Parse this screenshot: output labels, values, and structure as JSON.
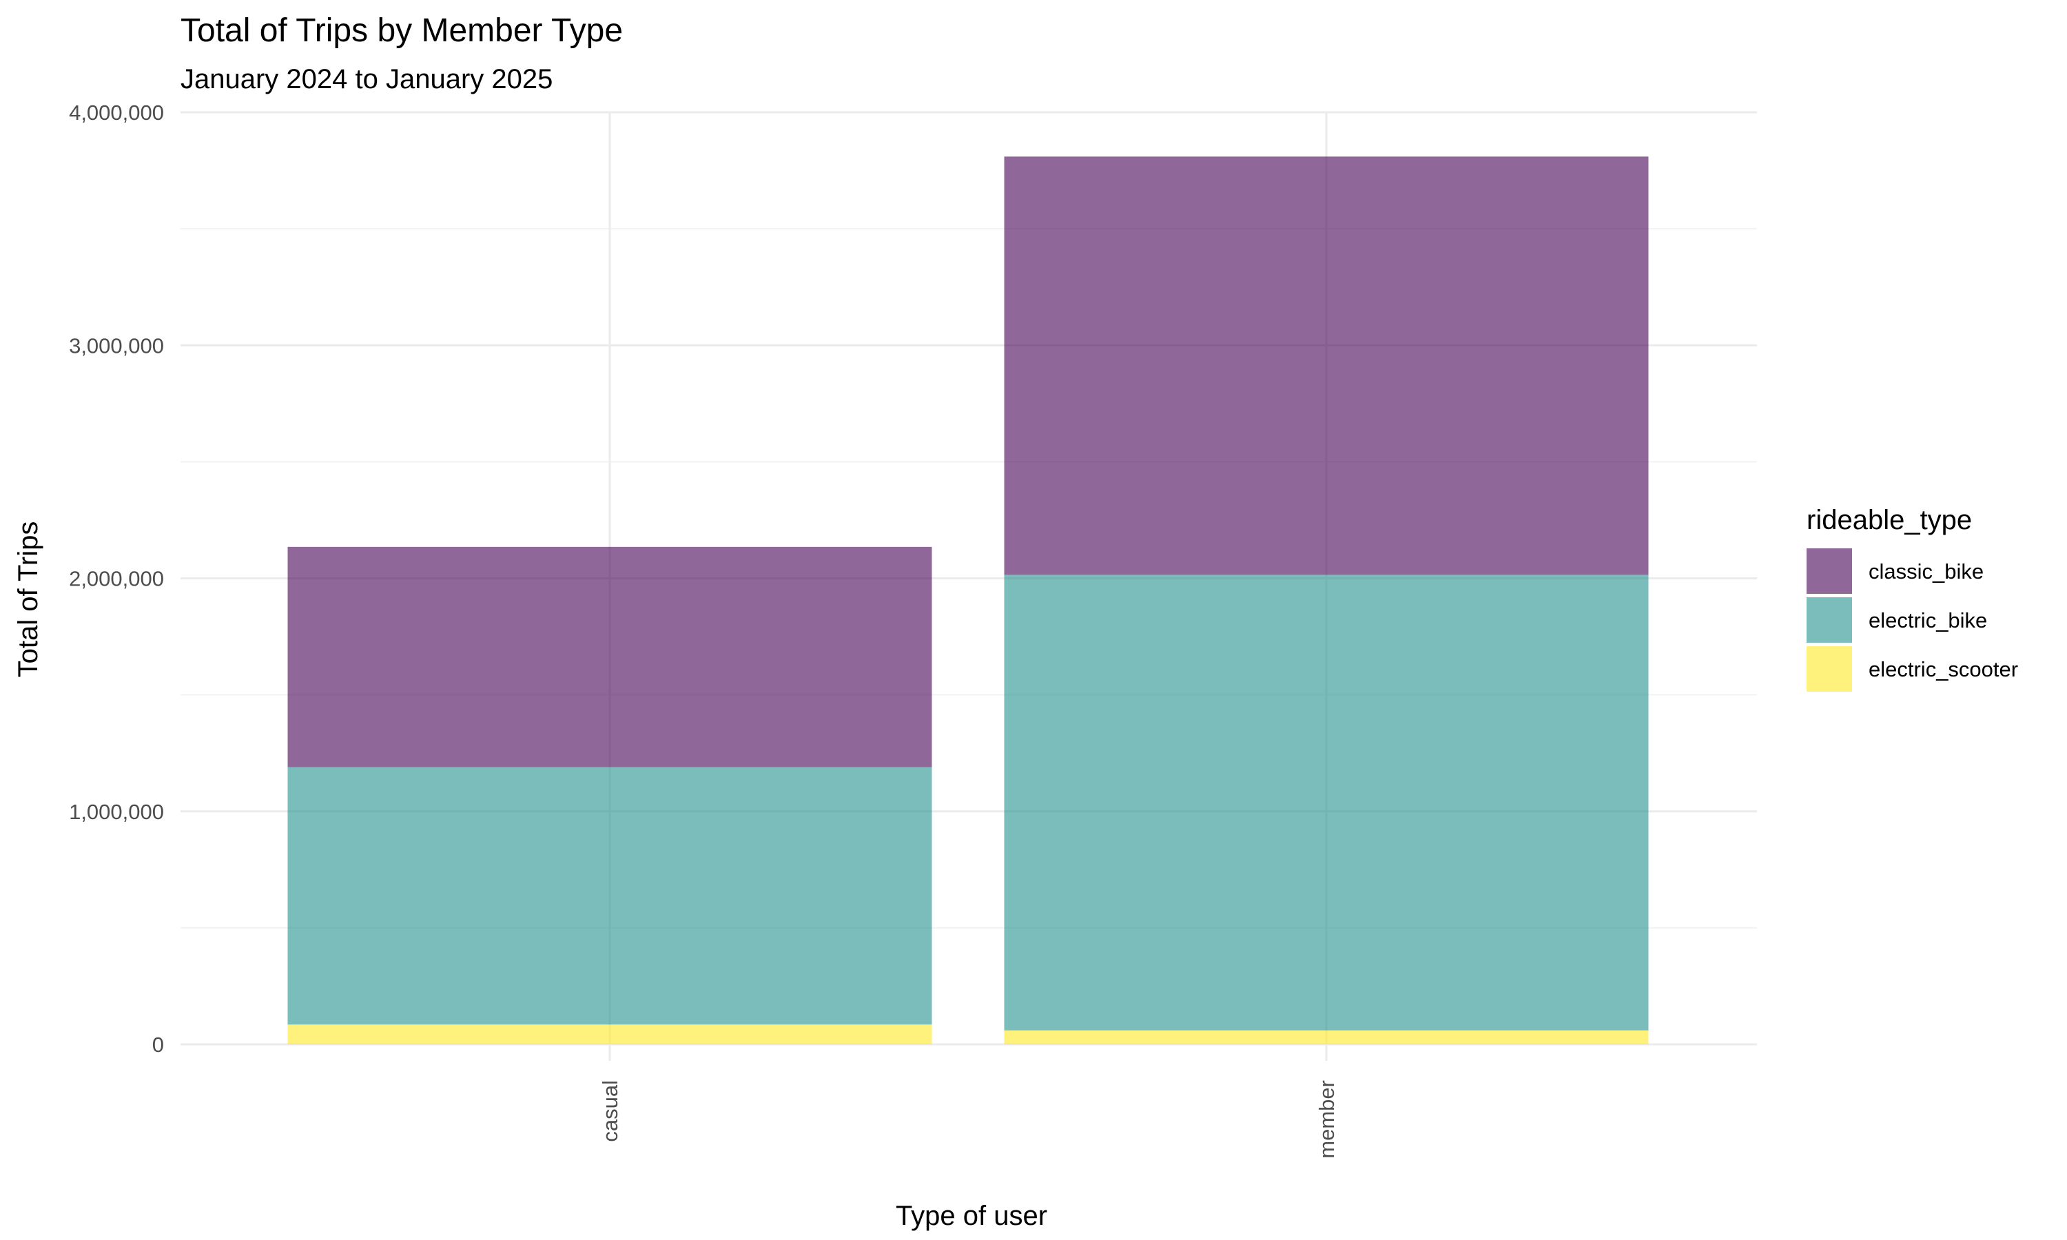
{
  "chart_data": {
    "type": "bar",
    "stacked": true,
    "title": "Total of Trips by Member Type",
    "subtitle": "January 2024 to January 2025",
    "xlabel": "Type of user",
    "ylabel": "Total of Trips",
    "categories": [
      "casual",
      "member"
    ],
    "ylim": [
      0,
      4000000
    ],
    "y_ticks": [
      0,
      1000000,
      2000000,
      3000000,
      4000000
    ],
    "y_tick_labels": [
      "0",
      "1,000,000",
      "2,000,000",
      "3,000,000",
      "4,000,000"
    ],
    "grid": true,
    "legend_position": "right",
    "legend_title": "rideable_type",
    "series": [
      {
        "name": "electric_scooter",
        "color": "#fde725",
        "values": [
          85000,
          60000
        ]
      },
      {
        "name": "electric_bike",
        "color": "#21918c",
        "values": [
          1105000,
          1955000
        ]
      },
      {
        "name": "classic_bike",
        "color": "#440154",
        "values": [
          945000,
          1795000
        ]
      }
    ],
    "legend_order": [
      "classic_bike",
      "electric_bike",
      "electric_scooter"
    ],
    "bar_opacity": 0.6
  }
}
